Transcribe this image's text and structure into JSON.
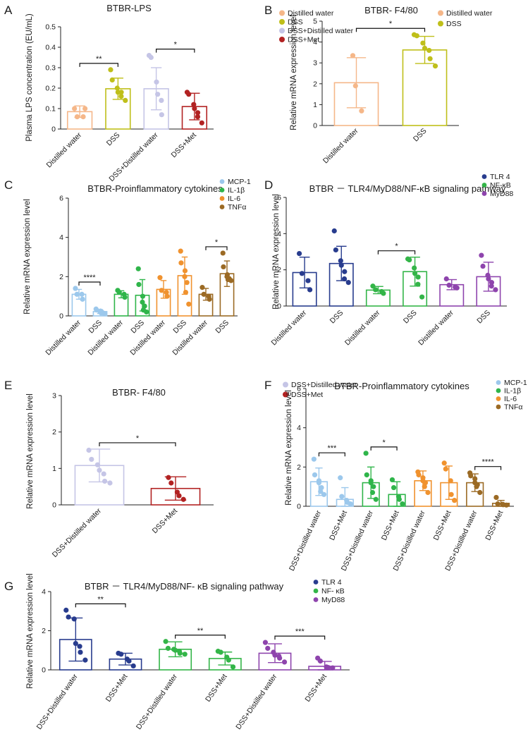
{
  "figure": {
    "panels": [
      "A",
      "B",
      "C",
      "D",
      "E",
      "F",
      "G"
    ]
  },
  "colors": {
    "distilled": "#f5b789",
    "dss_olive": "#bfbf1a",
    "dss_distilled": "#c5c5e6",
    "dss_met": "#b22222",
    "mcp1": "#9cc8ec",
    "il1b": "#2fb54a",
    "il6": "#f0922e",
    "tnfa": "#9b6a24",
    "tlr4": "#283c8e",
    "nfkb": "#33b548",
    "myd88": "#8e44ad"
  },
  "chart_data": [
    {
      "id": "A",
      "type": "bar",
      "title": "BTBR-LPS",
      "ylabel": "Plasma LPS concentration (EU/mL)",
      "xlabel": "",
      "ylim": [
        0,
        0.5
      ],
      "yticks": [
        0,
        0.1,
        0.2,
        0.3,
        0.4,
        0.5
      ],
      "ytick_labels": [
        "0",
        "0.1",
        "0.2",
        "0.3",
        "0.4",
        "0.5"
      ],
      "categories": [
        "Distilled water",
        "DSS",
        "DSS+Distilled water",
        "DSS+Met"
      ],
      "values": [
        0.085,
        0.197,
        0.197,
        0.11
      ],
      "errors": [
        0.028,
        0.052,
        0.103,
        0.065
      ],
      "points": [
        [
          0.1,
          0.06,
          0.06,
          0.1
        ],
        [
          0.29,
          0.24,
          0.2,
          0.18,
          0.18,
          0.16,
          0.14
        ],
        [
          0.36,
          0.35,
          0.23,
          0.17,
          0.14,
          0.07
        ],
        [
          0.18,
          0.17,
          0.12,
          0.1,
          0.08,
          0.06,
          0.03
        ]
      ],
      "color_keys": [
        "distilled",
        "dss_olive",
        "dss_distilled",
        "dss_met"
      ],
      "legend": [
        "Distilled water",
        "DSS",
        "DSS+Distilled water",
        "DSS+Met"
      ],
      "significance": [
        {
          "from": 0,
          "to": 1,
          "label": "**"
        },
        {
          "from": 2,
          "to": 3,
          "label": "*"
        }
      ]
    },
    {
      "id": "B",
      "type": "bar",
      "title": "BTBR- F4/80",
      "ylabel": "Relative mRNA expression level",
      "xlabel": "",
      "ylim": [
        0,
        5
      ],
      "yticks": [
        0,
        1,
        2,
        3,
        4,
        5
      ],
      "ytick_labels": [
        "0",
        "1",
        "2",
        "3",
        "4",
        "5"
      ],
      "categories": [
        "Distilled water",
        "DSS"
      ],
      "values": [
        2.05,
        3.62
      ],
      "errors": [
        1.2,
        0.65
      ],
      "points": [
        [
          3.35,
          1.9,
          0.7
        ],
        [
          4.35,
          4.3,
          3.95,
          3.7,
          3.6,
          3.2,
          2.85
        ]
      ],
      "color_keys": [
        "distilled",
        "dss_olive"
      ],
      "legend": [
        "Distilled water",
        "DSS"
      ],
      "significance": [
        {
          "from": 0,
          "to": 1,
          "label": "*"
        }
      ]
    },
    {
      "id": "C",
      "type": "bar",
      "title": "BTBR-Proinflammatory cytokines",
      "ylabel": "Relative mRNA expression level",
      "xlabel": "",
      "ylim": [
        0,
        6
      ],
      "yticks": [
        0,
        2,
        4,
        6
      ],
      "ytick_labels": [
        "0",
        "2",
        "4",
        "6"
      ],
      "categories": [
        "Distilled water",
        "DSS",
        "Distilled water",
        "DSS",
        "Distilled water",
        "DSS",
        "Distilled water",
        "DSS"
      ],
      "values": [
        1.1,
        0.22,
        1.1,
        1.05,
        1.35,
        2.05,
        1.1,
        2.15
      ],
      "errors": [
        0.25,
        0.1,
        0.18,
        0.8,
        0.45,
        0.95,
        0.3,
        0.65
      ],
      "points": [
        [
          1.4,
          1.1,
          1.1,
          0.85
        ],
        [
          0.35,
          0.3,
          0.25,
          0.2,
          0.18,
          0.15,
          0.12
        ],
        [
          1.3,
          1.2,
          1.1,
          0.95
        ],
        [
          2.4,
          1.6,
          1.0,
          0.7,
          0.5,
          0.3,
          0.2
        ],
        [
          1.95,
          1.3,
          1.2,
          1.0
        ],
        [
          3.3,
          2.7,
          2.3,
          2.0,
          1.7,
          1.2,
          0.6
        ],
        [
          1.45,
          1.1,
          1.0,
          0.85
        ],
        [
          3.2,
          2.5,
          2.1,
          2.0,
          1.9,
          1.85,
          1.8
        ]
      ],
      "color_keys": [
        "mcp1",
        "mcp1",
        "il1b",
        "il1b",
        "il6",
        "il6",
        "tnfa",
        "tnfa"
      ],
      "legend": [
        "MCP-1",
        "IL-1β",
        "IL-6",
        "TNFα"
      ],
      "legend_color_keys": [
        "mcp1",
        "il1b",
        "il6",
        "tnfa"
      ],
      "significance": [
        {
          "from": 0,
          "to": 1,
          "label": "****"
        },
        {
          "from": 6,
          "to": 7,
          "label": "*"
        }
      ]
    },
    {
      "id": "D",
      "type": "bar",
      "title": "BTBR － TLR4/MyD88/NF-κB signaling pathway",
      "ylabel": "Relative mRNA expression level",
      "xlabel": "",
      "ylim": [
        0,
        6
      ],
      "yticks": [
        0,
        2,
        4,
        6
      ],
      "ytick_labels": [
        "0",
        "2",
        "4",
        "6"
      ],
      "categories": [
        "Distilled water",
        "DSS",
        "Distilled water",
        "DSS",
        "Distilled water",
        "DSS"
      ],
      "values": [
        1.85,
        2.35,
        0.88,
        1.9,
        1.18,
        1.62
      ],
      "errors": [
        0.85,
        0.95,
        0.2,
        0.8,
        0.28,
        0.8
      ],
      "points": [
        [
          2.9,
          1.8,
          1.4,
          0.9
        ],
        [
          4.15,
          3.1,
          2.5,
          2.25,
          1.9,
          1.5,
          1.3
        ],
        [
          1.1,
          0.9,
          0.8,
          0.7
        ],
        [
          2.6,
          2.55,
          2.1,
          1.8,
          1.6,
          1.2,
          0.5
        ],
        [
          1.5,
          1.15,
          1.05,
          1.0
        ],
        [
          2.8,
          2.2,
          1.7,
          1.5,
          1.3,
          1.1,
          0.9
        ]
      ],
      "color_keys": [
        "tlr4",
        "tlr4",
        "nfkb",
        "nfkb",
        "myd88",
        "myd88"
      ],
      "legend": [
        "TLR 4",
        "NF-κB",
        "MyD88"
      ],
      "legend_color_keys": [
        "tlr4",
        "nfkb",
        "myd88"
      ],
      "significance": [
        {
          "from": 2,
          "to": 3,
          "label": "*"
        }
      ]
    },
    {
      "id": "E",
      "type": "bar",
      "title": "BTBR- F4/80",
      "ylabel": "Relative mRNA expression level",
      "xlabel": "",
      "ylim": [
        0,
        3
      ],
      "yticks": [
        0,
        1,
        2,
        3
      ],
      "ytick_labels": [
        "0",
        "1",
        "2",
        "3"
      ],
      "categories": [
        "DSS+Distilled water",
        "DSS+Met"
      ],
      "values": [
        1.08,
        0.45
      ],
      "errors": [
        0.45,
        0.32
      ],
      "points": [
        [
          1.5,
          1.25,
          1.1,
          0.95,
          0.85,
          0.65,
          0.6
        ],
        [
          0.75,
          0.6,
          0.35,
          0.25,
          0.15
        ]
      ],
      "color_keys": [
        "dss_distilled",
        "dss_met"
      ],
      "legend": [
        "DSS+Distilled water",
        "DSS+Met"
      ],
      "significance": [
        {
          "from": 0,
          "to": 1,
          "label": "*"
        }
      ]
    },
    {
      "id": "F",
      "type": "bar",
      "title": "BTBR-Proinflammatory cytokines",
      "ylabel": "Relative mRNA expression level",
      "xlabel": "",
      "ylim": [
        0,
        6
      ],
      "yticks": [
        0,
        2,
        4,
        6
      ],
      "ytick_labels": [
        "0",
        "2",
        "4",
        "6"
      ],
      "categories": [
        "DSS+Distilled water",
        "DSS+Met",
        "DSS+Distilled water",
        "DSS+Met",
        "DSS+Distilled water",
        "DSS+Met",
        "DSS+Distilled water",
        "DSS+Met"
      ],
      "values": [
        1.25,
        0.35,
        1.2,
        0.6,
        1.3,
        1.2,
        1.2,
        0.15
      ],
      "errors": [
        0.7,
        0.6,
        0.8,
        0.65,
        0.5,
        0.85,
        0.45,
        0.15
      ],
      "points": [
        [
          2.4,
          1.6,
          1.3,
          1.2,
          0.95,
          0.75,
          0.6
        ],
        [
          1.45,
          0.5,
          0.3,
          0.2,
          0.12
        ],
        [
          2.7,
          1.6,
          1.3,
          1.2,
          1.0,
          0.7,
          0.35
        ],
        [
          1.35,
          0.95,
          0.5,
          0.35,
          0.12
        ],
        [
          1.75,
          1.6,
          1.45,
          1.3,
          1.2,
          1.0,
          0.7
        ],
        [
          2.2,
          1.9,
          1.3,
          0.6,
          0.3
        ],
        [
          1.7,
          1.55,
          1.4,
          1.2,
          1.1,
          1.0,
          0.7
        ],
        [
          0.45,
          0.12,
          0.1,
          0.08,
          0.06
        ]
      ],
      "color_keys": [
        "mcp1",
        "mcp1",
        "il1b",
        "il1b",
        "il6",
        "il6",
        "tnfa",
        "tnfa"
      ],
      "legend": [
        "MCP-1",
        "IL-1β",
        "IL-6",
        "TNFα"
      ],
      "legend_color_keys": [
        "mcp1",
        "il1b",
        "il6",
        "tnfa"
      ],
      "significance": [
        {
          "from": 0,
          "to": 1,
          "label": "***"
        },
        {
          "from": 2,
          "to": 3,
          "label": "*"
        },
        {
          "from": 6,
          "to": 7,
          "label": "****"
        }
      ]
    },
    {
      "id": "G",
      "type": "bar",
      "title": "BTBR － TLR4/MyD88/NF- κB signaling pathway",
      "ylabel": "Relative mRNA expression level",
      "xlabel": "",
      "ylim": [
        0,
        4
      ],
      "yticks": [
        0,
        2,
        4
      ],
      "ytick_labels": [
        "0",
        "2",
        "4"
      ],
      "categories": [
        "DSS+Distilled water",
        "DSS+Met",
        "DSS+Distilled water",
        "DSS+Met",
        "DSS+Distilled water",
        "DSS+Met"
      ],
      "values": [
        1.55,
        0.55,
        1.05,
        0.58,
        0.85,
        0.18
      ],
      "errors": [
        1.1,
        0.3,
        0.38,
        0.33,
        0.48,
        0.25
      ],
      "points": [
        [
          3.05,
          2.7,
          2.6,
          1.35,
          1.2,
          0.9,
          0.5
        ],
        [
          0.85,
          0.8,
          0.55,
          0.45,
          0.2
        ],
        [
          1.45,
          1.1,
          1.05,
          1.0,
          0.95,
          0.85,
          0.8
        ],
        [
          0.95,
          0.9,
          0.65,
          0.5,
          0.15
        ],
        [
          1.4,
          1.1,
          0.9,
          0.75,
          0.7,
          0.6,
          0.4
        ],
        [
          0.6,
          0.45,
          0.15,
          0.12,
          0.1
        ]
      ],
      "color_keys": [
        "tlr4",
        "tlr4",
        "nfkb",
        "nfkb",
        "myd88",
        "myd88"
      ],
      "legend": [
        "TLR 4",
        "NF- κB",
        "MyD88"
      ],
      "legend_color_keys": [
        "tlr4",
        "nfkb",
        "myd88"
      ],
      "significance": [
        {
          "from": 0,
          "to": 1,
          "label": "**"
        },
        {
          "from": 2,
          "to": 3,
          "label": "**"
        },
        {
          "from": 4,
          "to": 5,
          "label": "***"
        }
      ]
    }
  ]
}
